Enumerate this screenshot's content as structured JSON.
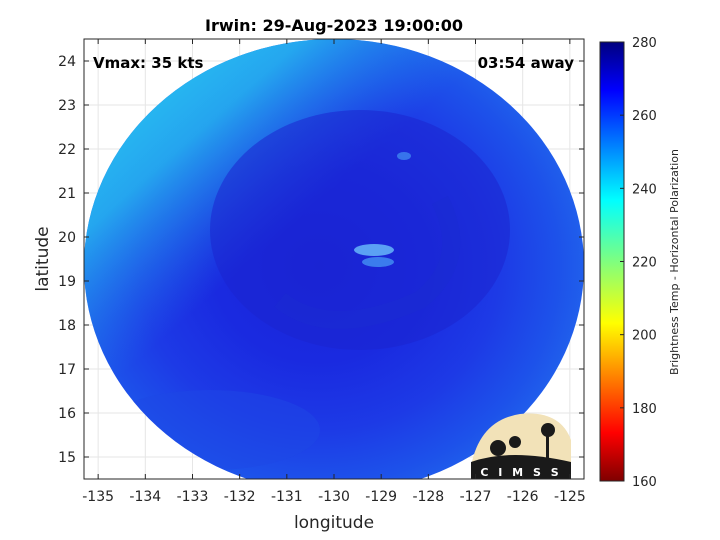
{
  "chart_data": {
    "type": "heatmap",
    "title": "Irwin: 29-Aug-2023 19:00:00",
    "xlabel": "longitude",
    "ylabel": "latitude",
    "xlim": [
      -135.3,
      -124.7
    ],
    "ylim": [
      14.5,
      24.5
    ],
    "x_ticks": [
      -135,
      -134,
      -133,
      -132,
      -131,
      -130,
      -129,
      -128,
      -127,
      -126,
      -125
    ],
    "y_ticks": [
      15,
      16,
      17,
      18,
      19,
      20,
      21,
      22,
      23,
      24
    ],
    "grid": true,
    "annotations": {
      "vmax": "Vmax: 35 kts",
      "time_away": "03:54 away"
    },
    "colorbar": {
      "label": "Brightness Temp - Horizontal Polarization",
      "range": [
        160,
        280
      ],
      "ticks": [
        160,
        180,
        200,
        220,
        240,
        260,
        280
      ],
      "colormap": "jet"
    },
    "swath": {
      "center_lon": -130,
      "center_lat": 19.3,
      "description": "circular microwave swath; warm ~265-270 K cyclone core near 19.8N 129.5W, cooler ~235-245 K along the northwest edge"
    },
    "logo_text": "CIMSS"
  }
}
